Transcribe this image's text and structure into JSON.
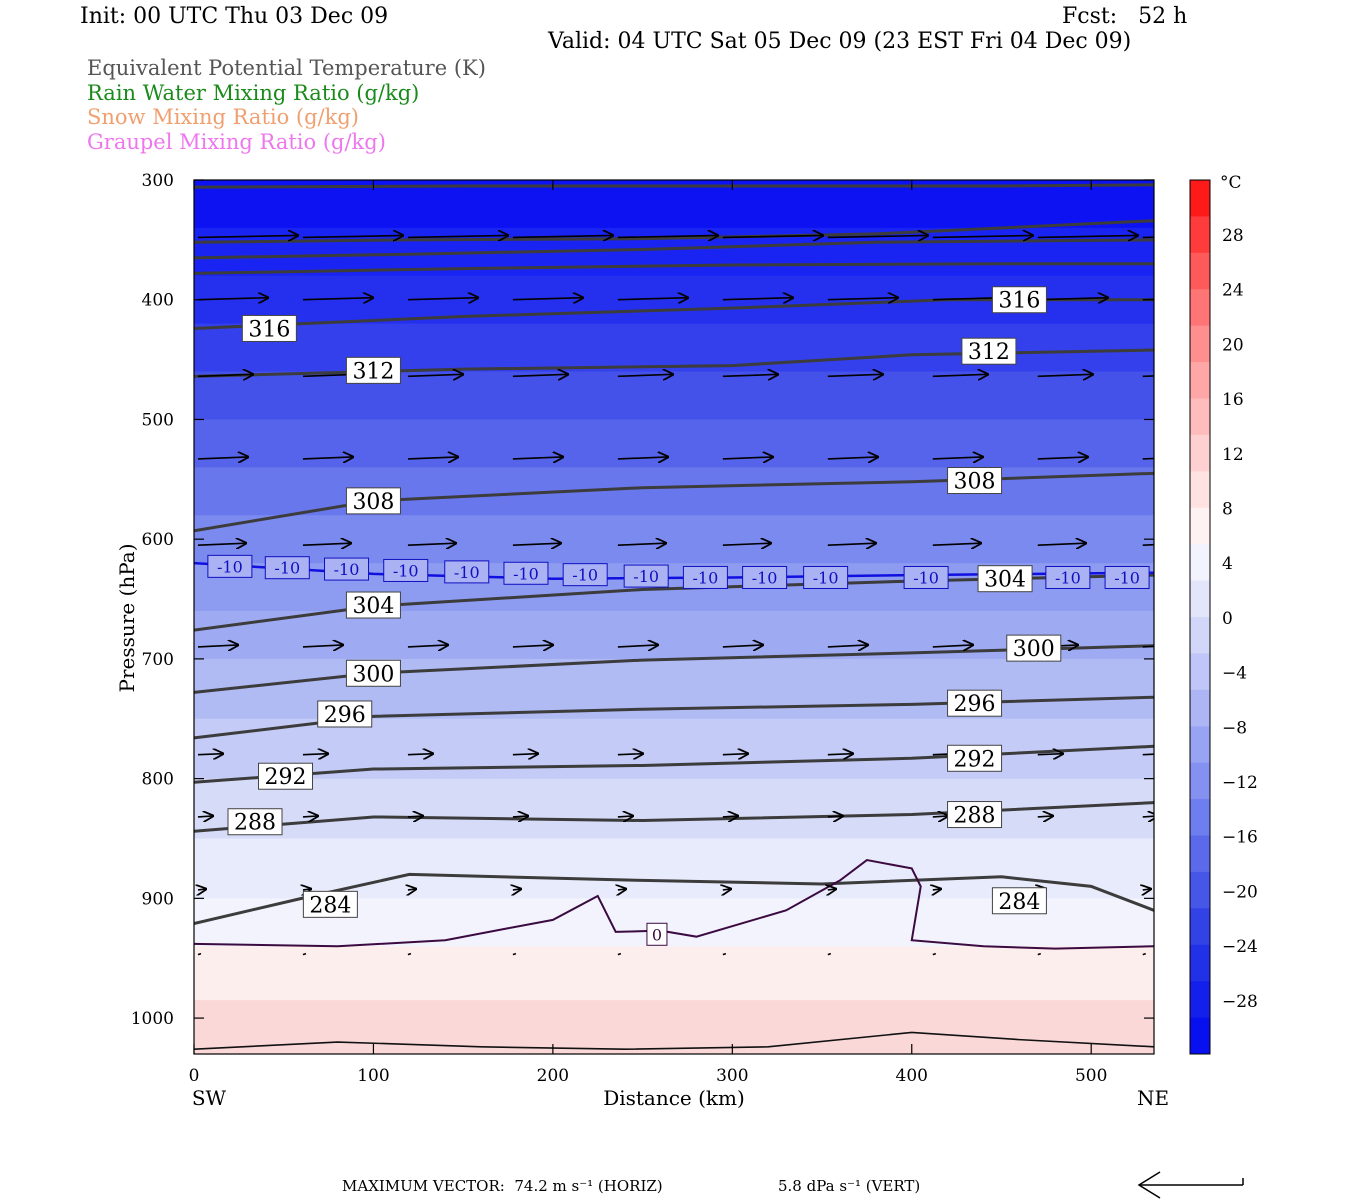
{
  "header": {
    "init": "Init: 00 UTC Thu 03 Dec 09",
    "fcst": "Fcst:   52 h",
    "valid": "Valid: 04 UTC Sat 05 Dec 09 (23 EST Fri 04 Dec 09)"
  },
  "legend": [
    {
      "label": "Equivalent Potential Temperature (K)",
      "color": "#555555"
    },
    {
      "label": "Rain Water Mixing Ratio (g/kg)",
      "color": "#1a8a1a"
    },
    {
      "label": "Snow Mixing Ratio (g/kg)",
      "color": "#f0a070"
    },
    {
      "label": "Graupel Mixing Ratio (g/kg)",
      "color": "#ee77ee"
    }
  ],
  "footer": {
    "max_vector": "MAXIMUM VECTOR:  74.2 m s⁻¹ (HORIZ)",
    "vert": "5.8 dPa s⁻¹ (VERT)"
  },
  "chart_data": {
    "type": "heatmap",
    "xlabel": "Distance (km)",
    "ylabel": "Pressure (hPa)",
    "x_range": [
      0,
      535
    ],
    "y_range": [
      300,
      1030
    ],
    "x_ticks": [
      0,
      100,
      200,
      300,
      400,
      500
    ],
    "y_ticks": [
      300,
      400,
      500,
      600,
      700,
      800,
      900,
      1000
    ],
    "x_left_label": "SW",
    "x_right_label": "NE",
    "colorbar": {
      "unit": "°C",
      "ticks": [
        28,
        24,
        20,
        16,
        12,
        8,
        4,
        0,
        -4,
        -8,
        -12,
        -16,
        -20,
        -24,
        -28
      ]
    },
    "theta_e_contours": [
      {
        "value": 316,
        "labels": [
          {
            "x": 42,
            "p": 424
          },
          {
            "x": 460,
            "p": 400
          }
        ]
      },
      {
        "value": 312,
        "labels": [
          {
            "x": 100,
            "p": 459
          },
          {
            "x": 443,
            "p": 443
          }
        ]
      },
      {
        "value": 308,
        "labels": [
          {
            "x": 100,
            "p": 568
          },
          {
            "x": 435,
            "p": 551
          }
        ]
      },
      {
        "value": 304,
        "labels": [
          {
            "x": 100,
            "p": 655
          },
          {
            "x": 452,
            "p": 633
          }
        ]
      },
      {
        "value": 300,
        "labels": [
          {
            "x": 100,
            "p": 712
          },
          {
            "x": 468,
            "p": 691
          }
        ]
      },
      {
        "value": 296,
        "labels": [
          {
            "x": 84,
            "p": 746
          },
          {
            "x": 435,
            "p": 737
          }
        ]
      },
      {
        "value": 292,
        "labels": [
          {
            "x": 51,
            "p": 798
          },
          {
            "x": 435,
            "p": 783
          }
        ]
      },
      {
        "value": 288,
        "labels": [
          {
            "x": 34,
            "p": 836
          },
          {
            "x": 435,
            "p": 830
          }
        ]
      },
      {
        "value": 284,
        "labels": [
          {
            "x": 76,
            "p": 905
          },
          {
            "x": 460,
            "p": 902
          }
        ]
      }
    ],
    "isotherm_labels": [
      "-10",
      "0"
    ]
  }
}
